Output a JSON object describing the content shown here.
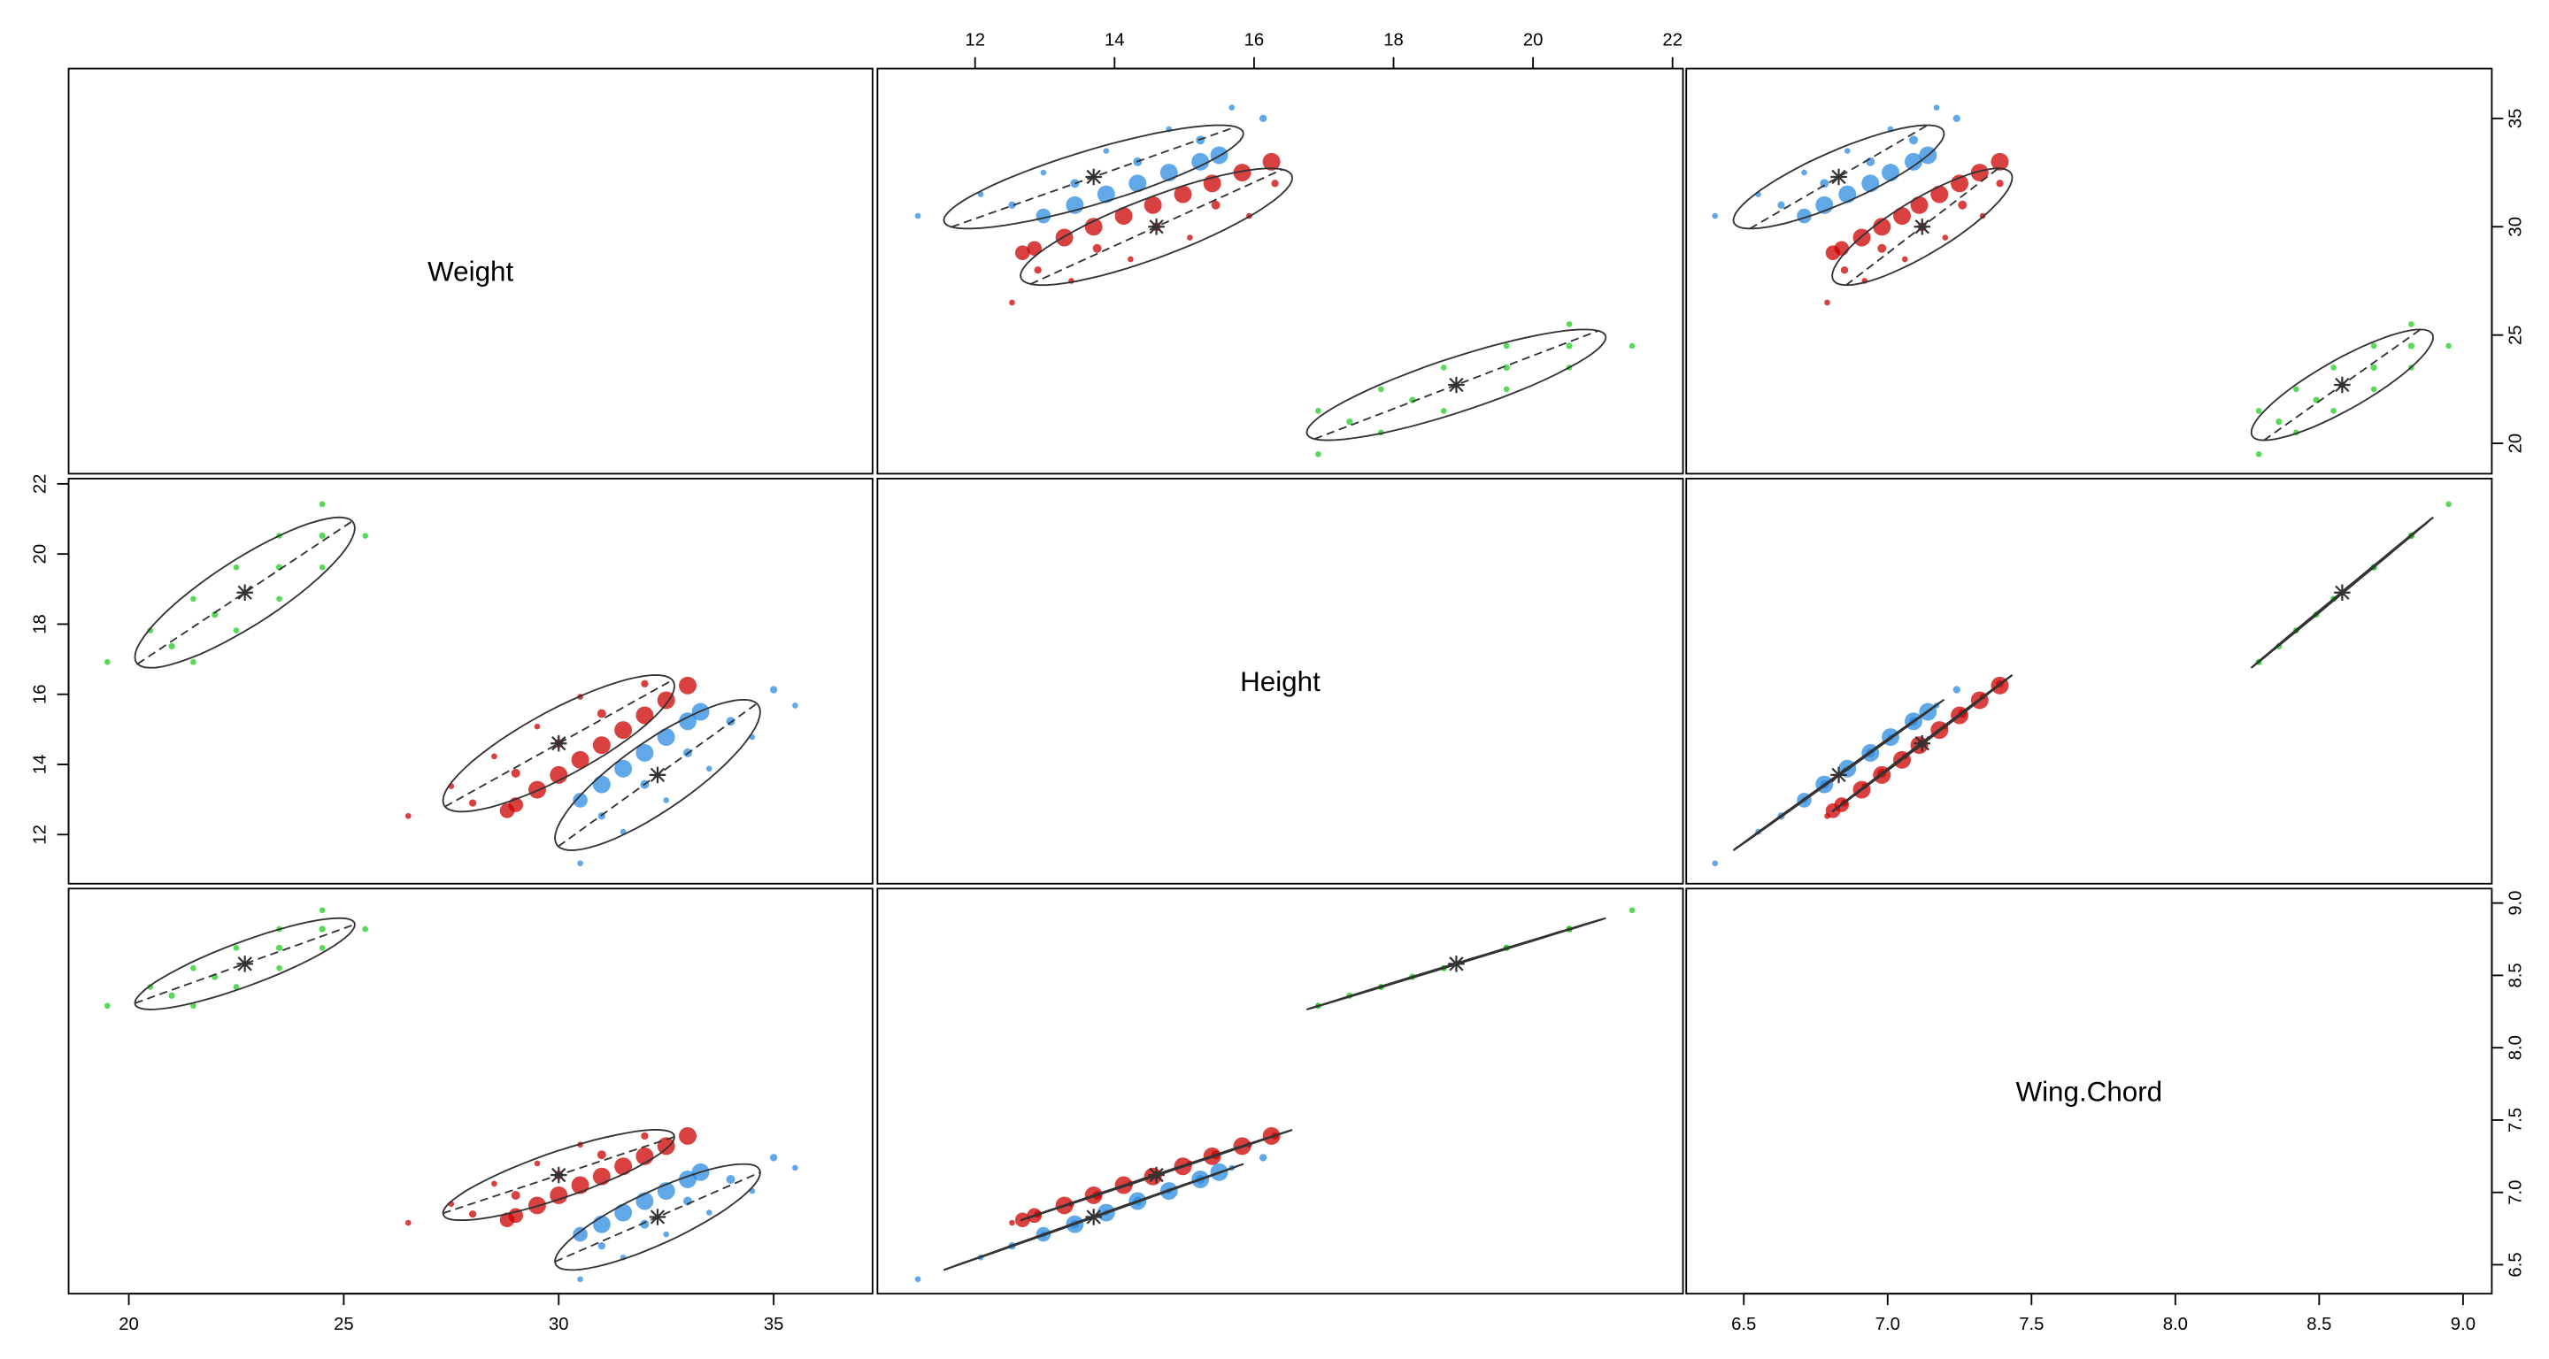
{
  "chart_data": {
    "type": "scatter",
    "variables": [
      {
        "label": "Weight",
        "lim": [
          18.6,
          37.3
        ],
        "ticks": [
          20,
          25,
          30,
          35
        ]
      },
      {
        "label": "Height",
        "lim": [
          10.6,
          22.15
        ],
        "ticks": [
          12,
          14,
          16,
          18,
          20,
          22
        ]
      },
      {
        "label": "Wing.Chord",
        "lim": [
          6.3,
          9.1
        ],
        "ticks": [
          6.5,
          {
            "value": 7,
            "label": "7.0"
          },
          7.5,
          {
            "value": 8,
            "label": "8.0"
          },
          8.5,
          {
            "value": 9,
            "label": "9.0"
          }
        ]
      }
    ],
    "series": [
      {
        "color": "#22cc22",
        "center": [
          22.7,
          18.9,
          8.58
        ],
        "values": [
          [
            19.5,
            16.92,
            8.29
          ],
          [
            20.5,
            17.82,
            8.42
          ],
          [
            21.5,
            18.72,
            8.55
          ],
          [
            22.5,
            19.62,
            8.69
          ],
          [
            23.5,
            20.52,
            8.82
          ],
          [
            24.5,
            21.42,
            8.95
          ],
          [
            21,
            17.37,
            8.36
          ],
          [
            22,
            18.27,
            8.49
          ],
          [
            22.7,
            18.9,
            8.58
          ],
          [
            23.5,
            19.62,
            8.69
          ],
          [
            24.5,
            20.52,
            8.82
          ],
          [
            21.5,
            16.92,
            8.29
          ],
          [
            22.5,
            17.82,
            8.42
          ],
          [
            23.5,
            18.72,
            8.55
          ],
          [
            24.5,
            19.62,
            8.69
          ],
          [
            25.5,
            20.52,
            8.82
          ]
        ],
        "sizes": [
          1,
          1,
          1,
          1,
          1,
          1,
          1.2,
          1.2,
          1.2,
          1.2,
          1.2,
          1,
          1,
          1,
          1,
          1
        ]
      },
      {
        "color": "#cc0000",
        "center": [
          30.0,
          14.6,
          7.12
        ],
        "values": [
          [
            26.5,
            12.53,
            6.79
          ],
          [
            27.5,
            13.38,
            6.92
          ],
          [
            28.5,
            14.23,
            7.06
          ],
          [
            29.5,
            15.08,
            7.2
          ],
          [
            30.5,
            15.93,
            7.33
          ],
          [
            28,
            12.9,
            6.85
          ],
          [
            29,
            13.75,
            6.98
          ],
          [
            30,
            14.6,
            7.12
          ],
          [
            31,
            15.45,
            7.26
          ],
          [
            32,
            16.3,
            7.39
          ],
          [
            29,
            12.85,
            6.84
          ],
          [
            30,
            13.7,
            6.98
          ],
          [
            31,
            14.55,
            7.11
          ],
          [
            32,
            15.4,
            7.25
          ],
          [
            33,
            16.25,
            7.39
          ],
          [
            28.8,
            12.68,
            6.81
          ],
          [
            29.5,
            13.28,
            6.91
          ],
          [
            30.5,
            14.13,
            7.05
          ],
          [
            31.5,
            14.98,
            7.18
          ],
          [
            32.5,
            15.83,
            7.32
          ]
        ],
        "sizes": [
          1,
          1,
          1,
          1,
          1,
          1.5,
          2,
          2,
          2,
          1.5,
          4,
          5,
          5,
          5,
          5,
          4,
          5,
          5,
          5,
          5
        ]
      },
      {
        "color": "#2b8be0",
        "center": [
          32.3,
          13.7,
          6.83
        ],
        "values": [
          [
            30.5,
            11.18,
            6.4
          ],
          [
            31.5,
            12.08,
            6.55
          ],
          [
            32.5,
            12.98,
            6.71
          ],
          [
            33.5,
            13.88,
            6.86
          ],
          [
            34.5,
            14.78,
            7.01
          ],
          [
            35.5,
            15.68,
            7.17
          ],
          [
            31,
            12.53,
            6.63
          ],
          [
            32,
            13.43,
            6.78
          ],
          [
            33,
            14.33,
            6.94
          ],
          [
            34,
            15.23,
            7.09
          ],
          [
            35,
            16.13,
            7.24
          ],
          [
            30.5,
            12.98,
            6.71
          ],
          [
            31,
            13.43,
            6.78
          ],
          [
            31.5,
            13.88,
            6.86
          ],
          [
            32,
            14.33,
            6.94
          ],
          [
            32.5,
            14.78,
            7.01
          ],
          [
            33,
            15.23,
            7.09
          ],
          [
            33.3,
            15.5,
            7.14
          ]
        ],
        "sizes": [
          1,
          1,
          1,
          1,
          1,
          1,
          1.5,
          2,
          2,
          2,
          1.5,
          4,
          5,
          5,
          5,
          5,
          5,
          5
        ]
      }
    ]
  }
}
